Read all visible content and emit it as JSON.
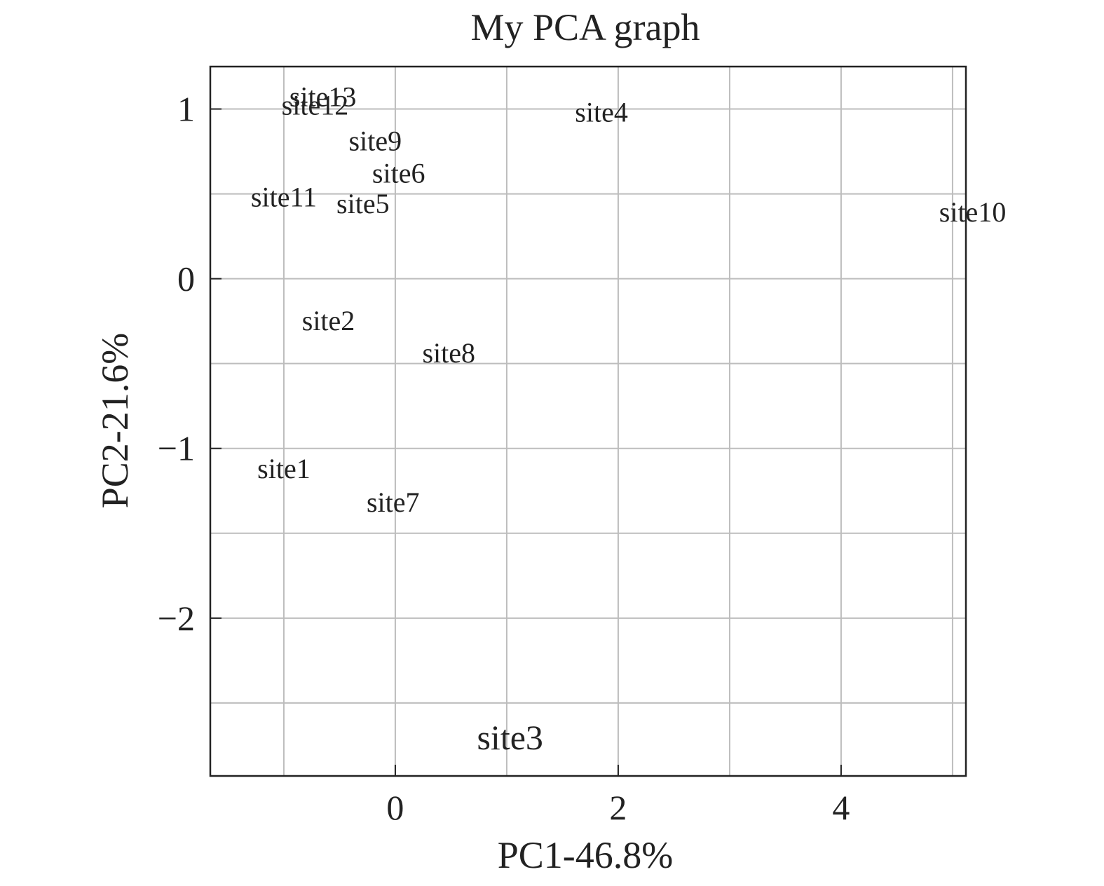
{
  "chart_data": {
    "type": "scatter",
    "title": "My PCA graph",
    "xlabel": "PC1-46.8%",
    "ylabel": "PC2-21.6%",
    "xlim": [
      -1.66,
      5.12
    ],
    "ylim": [
      -2.93,
      1.25
    ],
    "x_ticks": [
      0,
      2,
      4
    ],
    "x_tick_labels": [
      "0",
      "2",
      "4"
    ],
    "y_ticks": [
      1,
      0,
      -1,
      -2
    ],
    "y_tick_labels": [
      "1",
      "0",
      "−1",
      "−2"
    ],
    "x_grid": [
      -1,
      0,
      1,
      2,
      3,
      4,
      5
    ],
    "y_grid": [
      1,
      0.5,
      0,
      -0.5,
      -1,
      -1.5,
      -2,
      -2.5
    ],
    "grid": true,
    "marker": "text-label",
    "points": [
      {
        "label": "site1",
        "x": -1.0,
        "y": -1.12
      },
      {
        "label": "site2",
        "x": -0.6,
        "y": -0.25
      },
      {
        "label": "site3",
        "x": 1.03,
        "y": -2.72
      },
      {
        "label": "site4",
        "x": 1.85,
        "y": 0.98
      },
      {
        "label": "site5",
        "x": -0.29,
        "y": 0.44
      },
      {
        "label": "site6",
        "x": 0.03,
        "y": 0.62
      },
      {
        "label": "site7",
        "x": -0.02,
        "y": -1.32
      },
      {
        "label": "site8",
        "x": 0.48,
        "y": -0.44
      },
      {
        "label": "site9",
        "x": -0.18,
        "y": 0.81
      },
      {
        "label": "site10",
        "x": 5.18,
        "y": 0.39
      },
      {
        "label": "site11",
        "x": -1.0,
        "y": 0.48
      },
      {
        "label": "site12",
        "x": -0.72,
        "y": 1.02
      },
      {
        "label": "site13",
        "x": -0.65,
        "y": 1.07
      }
    ]
  }
}
